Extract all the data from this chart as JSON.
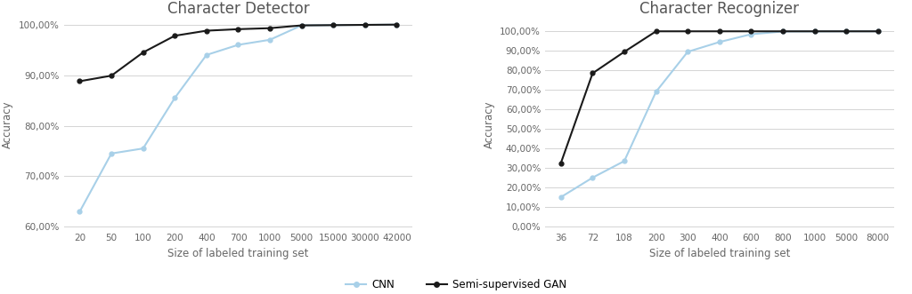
{
  "chart1": {
    "title": "Character Detector",
    "xlabel": "Size of labeled training set",
    "ylabel": "Accuracy",
    "cnn_x": [
      20,
      50,
      100,
      200,
      400,
      700,
      1000,
      5000,
      15000,
      30000,
      42000
    ],
    "cnn_y": [
      0.63,
      0.745,
      0.755,
      0.855,
      0.94,
      0.96,
      0.97,
      0.9985,
      0.999,
      0.9995,
      1.0
    ],
    "gan_x": [
      20,
      50,
      100,
      200,
      400,
      700,
      1000,
      5000,
      15000,
      30000,
      42000
    ],
    "gan_y": [
      0.888,
      0.899,
      0.945,
      0.978,
      0.988,
      0.991,
      0.993,
      0.9985,
      0.999,
      0.9995,
      1.0
    ],
    "ylim": [
      0.595,
      1.008
    ],
    "yticks": [
      0.6,
      0.7,
      0.8,
      0.9,
      1.0
    ],
    "ytick_labels": [
      "60,00%",
      "70,00%",
      "80,00%",
      "90,00%",
      "100,00%"
    ]
  },
  "chart2": {
    "title": "Character Recognizer",
    "xlabel": "Size of labeled training set",
    "ylabel": "Accuracy",
    "cnn_x": [
      36,
      72,
      108,
      200,
      300,
      400,
      600,
      800,
      1000,
      5000,
      8000
    ],
    "cnn_y": [
      0.15,
      0.25,
      0.335,
      0.69,
      0.895,
      0.945,
      0.985,
      0.999,
      0.9995,
      1.0,
      1.0
    ],
    "gan_x": [
      36,
      72,
      108,
      200,
      300,
      400,
      600,
      800,
      1000,
      5000,
      8000
    ],
    "gan_y": [
      0.325,
      0.785,
      0.895,
      1.0,
      1.0,
      1.0,
      1.0,
      1.0,
      1.0,
      1.0,
      1.0
    ],
    "ylim": [
      -0.015,
      1.055
    ],
    "yticks": [
      0.0,
      0.1,
      0.2,
      0.3,
      0.4,
      0.5,
      0.6,
      0.7,
      0.8,
      0.9,
      1.0
    ],
    "ytick_labels": [
      "0,00%",
      "10,00%",
      "20,00%",
      "30,00%",
      "40,00%",
      "50,00%",
      "60,00%",
      "70,00%",
      "80,00%",
      "90,00%",
      "100,00%"
    ]
  },
  "cnn_color": "#a8d0e8",
  "gan_color": "#1a1a1a",
  "legend_cnn": "CNN",
  "legend_gan": "Semi-supervised GAN",
  "grid_color": "#d4d4d4",
  "bg_color": "#ffffff",
  "title_fontsize": 12,
  "label_fontsize": 8.5,
  "tick_fontsize": 7.5
}
